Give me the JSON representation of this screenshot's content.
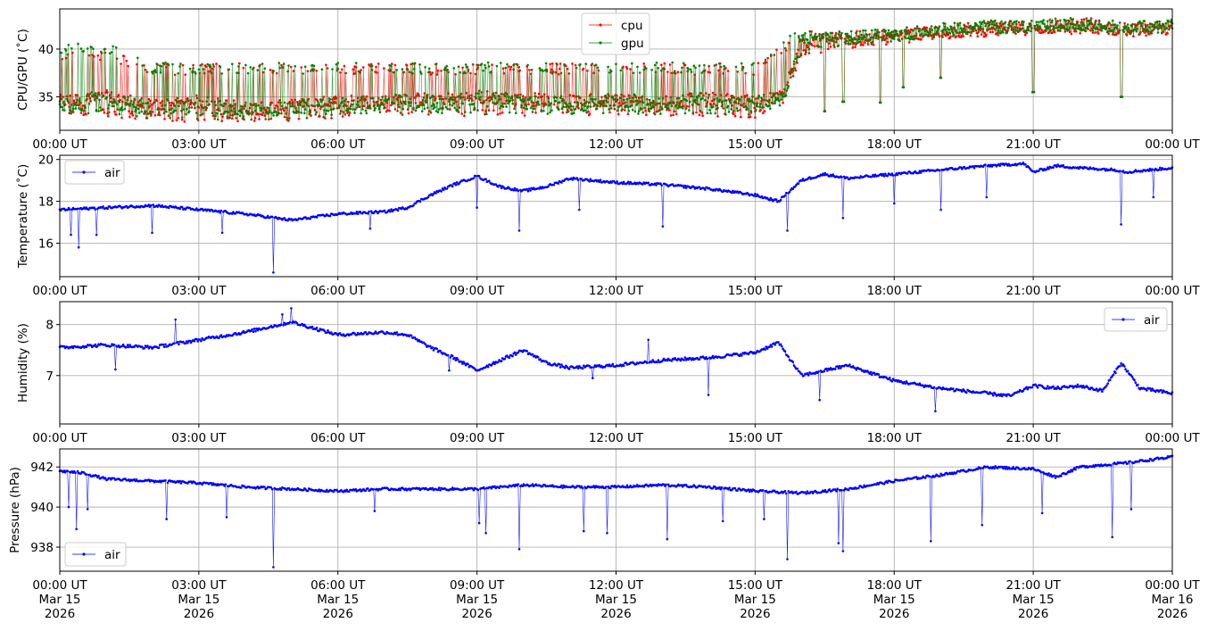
{
  "chart_data": [
    {
      "type": "line",
      "ylabel": "CPU/GPU (˚C)",
      "ylim": [
        31.5,
        44.2
      ],
      "yticks": [
        35,
        40
      ],
      "xlim": [
        "2026-03-15T00:00",
        "2026-03-16T00:00"
      ],
      "xtick_labels": [
        "00:00 UT",
        "03:00 UT",
        "06:00 UT",
        "09:00 UT",
        "12:00 UT",
        "15:00 UT",
        "18:00 UT",
        "21:00 UT",
        "00:00 UT"
      ],
      "grid": true,
      "legend": "top-center",
      "series": [
        {
          "name": "cpu",
          "color": "#ff0000",
          "hours": [
            0,
            1,
            2,
            3,
            4,
            5,
            6,
            7,
            8,
            9,
            10,
            11,
            12,
            13,
            14,
            15,
            15.6,
            16,
            17,
            18,
            19,
            20,
            21,
            22,
            23,
            24
          ],
          "levels": [
            34.5,
            35.0,
            34.0,
            34.5,
            33.8,
            34.0,
            34.5,
            34.5,
            34.8,
            35.0,
            34.8,
            34.5,
            34.8,
            34.5,
            34.8,
            34.5,
            35.0,
            40.5,
            41.0,
            41.2,
            41.8,
            42.0,
            42.2,
            42.5,
            42.0,
            42.2
          ],
          "swing_low": [
            33.0,
            33.0,
            32.4,
            32.4,
            32.4,
            32.4,
            32.8,
            33.0,
            33.0,
            33.0,
            33.0,
            33.0,
            33.0,
            33.0,
            33.0,
            32.8,
            34.0,
            39.0,
            40.0,
            40.8,
            41.0,
            41.5,
            41.5,
            41.5,
            41.5,
            41.5
          ],
          "swing_high": [
            40.0,
            40.0,
            38.5,
            38.5,
            38.5,
            38.5,
            38.5,
            38.5,
            38.5,
            38.5,
            38.5,
            38.5,
            38.5,
            38.5,
            38.5,
            38.5,
            40.5,
            42.0,
            42.0,
            42.0,
            42.5,
            43.0,
            43.0,
            43.5,
            43.0,
            43.2
          ],
          "dips": [
            [
              16.5,
              33.5
            ],
            [
              16.9,
              34.5
            ],
            [
              17.7,
              34.4
            ],
            [
              18.2,
              36.0
            ],
            [
              19.0,
              37.0
            ],
            [
              21.0,
              35.5
            ],
            [
              22.9,
              35.0
            ]
          ]
        },
        {
          "name": "gpu",
          "color": "#008000",
          "hours": [
            0,
            1,
            2,
            3,
            4,
            5,
            6,
            7,
            8,
            9,
            10,
            11,
            12,
            13,
            14,
            15,
            15.6,
            16,
            17,
            18,
            19,
            20,
            21,
            22,
            23,
            24
          ],
          "levels": [
            34.3,
            34.8,
            33.8,
            34.2,
            33.5,
            33.8,
            34.2,
            34.5,
            34.5,
            34.8,
            34.5,
            34.3,
            34.6,
            34.4,
            34.6,
            34.3,
            35.0,
            40.8,
            41.2,
            41.5,
            42.0,
            42.3,
            42.4,
            42.6,
            42.2,
            42.4
          ],
          "swing_low": [
            33.2,
            33.2,
            32.6,
            32.6,
            32.6,
            32.6,
            33.0,
            33.2,
            33.2,
            33.2,
            33.2,
            33.2,
            33.2,
            33.2,
            33.2,
            33.0,
            34.2,
            39.5,
            40.5,
            41.0,
            41.2,
            41.8,
            41.8,
            41.8,
            41.8,
            41.8
          ],
          "swing_high": [
            40.5,
            40.8,
            38.6,
            38.6,
            38.6,
            38.6,
            38.6,
            38.6,
            38.6,
            38.6,
            38.6,
            38.6,
            38.6,
            38.6,
            38.6,
            38.6,
            41.0,
            42.0,
            42.0,
            42.0,
            42.8,
            43.0,
            43.0,
            43.0,
            43.0,
            43.0
          ],
          "dips": [
            [
              16.5,
              33.5
            ],
            [
              16.9,
              34.5
            ],
            [
              17.7,
              34.4
            ],
            [
              18.2,
              36.0
            ],
            [
              19.0,
              37.0
            ],
            [
              21.0,
              35.5
            ],
            [
              22.9,
              35.0
            ]
          ]
        }
      ]
    },
    {
      "type": "line",
      "ylabel": "Temperature (˚C)",
      "ylim": [
        14.4,
        20.2
      ],
      "yticks": [
        16,
        18,
        20
      ],
      "xlim": [
        "2026-03-15T00:00",
        "2026-03-16T00:00"
      ],
      "xtick_labels": [
        "00:00 UT",
        "03:00 UT",
        "06:00 UT",
        "09:00 UT",
        "12:00 UT",
        "15:00 UT",
        "18:00 UT",
        "21:00 UT",
        "00:00 UT"
      ],
      "grid": true,
      "legend": "top-left",
      "series": [
        {
          "name": "air",
          "color": "#0000ff",
          "hours": [
            0,
            1,
            2,
            3,
            4,
            5,
            6,
            7,
            7.5,
            8,
            8.5,
            9,
            9.5,
            10,
            10.5,
            11,
            12,
            13,
            14,
            15,
            15.5,
            16,
            16.5,
            17,
            17.5,
            18,
            19,
            20,
            20.8,
            21,
            21.5,
            22,
            22.8,
            23,
            24
          ],
          "values": [
            17.6,
            17.7,
            17.8,
            17.6,
            17.4,
            17.1,
            17.4,
            17.5,
            17.7,
            18.3,
            18.8,
            19.2,
            18.7,
            18.5,
            18.7,
            19.1,
            18.9,
            18.8,
            18.6,
            18.3,
            18.0,
            19.0,
            19.3,
            19.1,
            19.2,
            19.3,
            19.5,
            19.7,
            19.8,
            19.4,
            19.7,
            19.6,
            19.5,
            19.4,
            19.6
          ],
          "spikes": [
            [
              0.25,
              16.4
            ],
            [
              0.4,
              15.8
            ],
            [
              0.8,
              16.4
            ],
            [
              2.0,
              16.5
            ],
            [
              3.5,
              16.5
            ],
            [
              4.6,
              14.6
            ],
            [
              6.7,
              16.7
            ],
            [
              9.0,
              17.7
            ],
            [
              9.9,
              16.6
            ],
            [
              11.2,
              17.6
            ],
            [
              12.3,
              17.6
            ],
            [
              13.0,
              16.8
            ],
            [
              15.7,
              16.6
            ],
            [
              16.9,
              17.2
            ],
            [
              18.0,
              17.9
            ],
            [
              19.0,
              17.6
            ],
            [
              20.0,
              18.2
            ],
            [
              22.5,
              18.3
            ],
            [
              22.9,
              16.9
            ],
            [
              23.6,
              18.2
            ]
          ]
        }
      ]
    },
    {
      "type": "line",
      "ylabel": "Humidity (%)",
      "ylim": [
        6.05,
        8.45
      ],
      "yticks": [
        7,
        8
      ],
      "xlim": [
        "2026-03-15T00:00",
        "2026-03-16T00:00"
      ],
      "xtick_labels": [
        "00:00 UT",
        "03:00 UT",
        "06:00 UT",
        "09:00 UT",
        "12:00 UT",
        "15:00 UT",
        "18:00 UT",
        "21:00 UT",
        "00:00 UT"
      ],
      "grid": true,
      "legend": "top-right",
      "series": [
        {
          "name": "air",
          "color": "#0000ff",
          "hours": [
            0,
            1,
            2,
            3,
            4,
            5,
            6,
            7,
            7.5,
            8,
            8.5,
            9,
            9.5,
            10,
            10.5,
            11,
            12,
            13,
            14,
            15,
            15.5,
            16,
            16.5,
            17,
            17.5,
            18,
            19,
            20,
            20.5,
            21,
            21.5,
            22,
            22.5,
            22.9,
            23.3,
            24
          ],
          "values": [
            7.55,
            7.6,
            7.55,
            7.7,
            7.85,
            8.05,
            7.8,
            7.85,
            7.8,
            7.55,
            7.35,
            7.1,
            7.3,
            7.5,
            7.25,
            7.15,
            7.2,
            7.3,
            7.35,
            7.45,
            7.65,
            7.0,
            7.1,
            7.2,
            7.05,
            6.9,
            6.75,
            6.65,
            6.6,
            6.8,
            6.75,
            6.8,
            6.7,
            7.25,
            6.75,
            6.65
          ],
          "spikes": [
            [
              1.2,
              7.12
            ],
            [
              2.5,
              8.1
            ],
            [
              4.8,
              8.2
            ],
            [
              5.0,
              8.32
            ],
            [
              8.4,
              7.1
            ],
            [
              9.3,
              7.7
            ],
            [
              11.5,
              6.95
            ],
            [
              12.3,
              7.77
            ],
            [
              12.7,
              7.7
            ],
            [
              14.0,
              6.62
            ],
            [
              16.4,
              6.52
            ],
            [
              18.9,
              6.3
            ],
            [
              20.7,
              6.2
            ],
            [
              19.5,
              7.15
            ]
          ]
        }
      ]
    },
    {
      "type": "line",
      "ylabel": "Pressure (hPa)",
      "ylim": [
        936.8,
        942.9
      ],
      "yticks": [
        938,
        940,
        942
      ],
      "xlim": [
        "2026-03-15T00:00",
        "2026-03-16T00:00"
      ],
      "xtick_labels": [
        "00:00 UT\nMar 15\n2026",
        "03:00 UT\nMar 15\n2026",
        "06:00 UT\nMar 15\n2026",
        "09:00 UT\nMar 15\n2026",
        "12:00 UT\nMar 15\n2026",
        "15:00 UT\nMar 15\n2026",
        "18:00 UT\nMar 15\n2026",
        "21:00 UT\nMar 15\n2026",
        "00:00 UT\nMar 16\n2026"
      ],
      "grid": true,
      "legend": "bottom-left",
      "series": [
        {
          "name": "air",
          "color": "#0000ff",
          "hours": [
            0,
            0.5,
            1,
            2,
            3,
            4,
            5,
            6,
            7,
            8,
            9,
            10,
            11,
            12,
            13,
            14,
            15,
            16,
            17,
            18,
            19,
            20,
            21,
            21.5,
            22,
            23,
            24
          ],
          "values": [
            941.8,
            941.7,
            941.4,
            941.3,
            941.2,
            941.0,
            940.9,
            940.8,
            940.9,
            940.9,
            940.9,
            941.1,
            941.0,
            941.0,
            941.1,
            941.0,
            940.8,
            940.7,
            940.9,
            941.3,
            941.6,
            942.0,
            941.9,
            941.5,
            942.0,
            942.2,
            942.5
          ],
          "spikes": [
            [
              0.2,
              940.0
            ],
            [
              0.35,
              938.9
            ],
            [
              0.6,
              939.9
            ],
            [
              2.3,
              939.4
            ],
            [
              3.6,
              939.5
            ],
            [
              4.6,
              937.0
            ],
            [
              6.8,
              939.8
            ],
            [
              9.05,
              939.2
            ],
            [
              9.2,
              938.7
            ],
            [
              9.9,
              937.9
            ],
            [
              11.3,
              938.8
            ],
            [
              11.8,
              938.7
            ],
            [
              13.1,
              938.4
            ],
            [
              14.3,
              939.3
            ],
            [
              15.2,
              939.4
            ],
            [
              15.7,
              937.4
            ],
            [
              16.8,
              938.2
            ],
            [
              16.9,
              937.8
            ],
            [
              18.8,
              938.3
            ],
            [
              19.9,
              939.1
            ],
            [
              21.2,
              939.7
            ],
            [
              22.7,
              938.5
            ],
            [
              23.1,
              939.9
            ]
          ]
        }
      ]
    }
  ]
}
